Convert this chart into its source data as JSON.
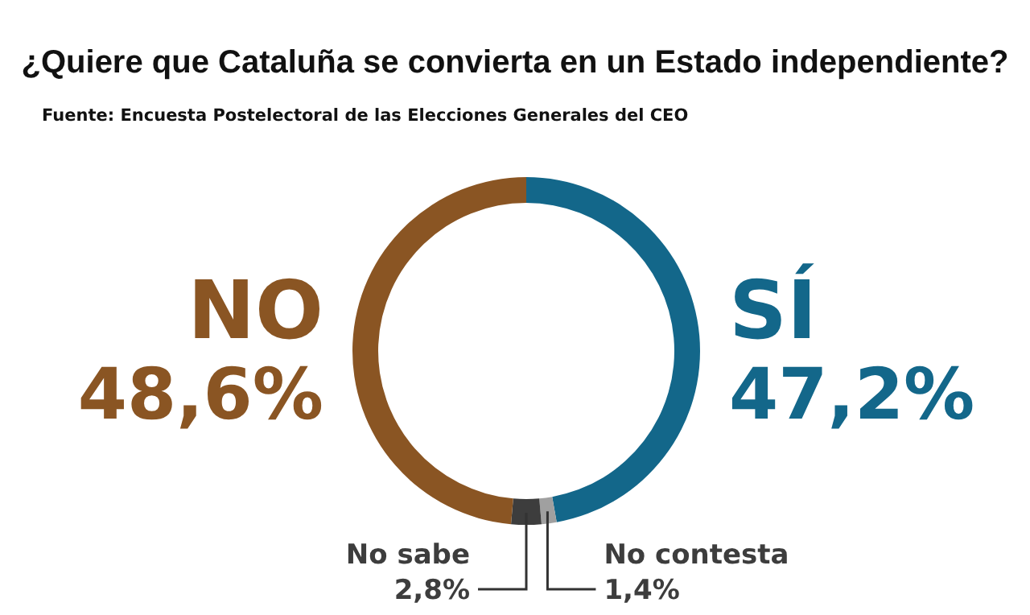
{
  "chart_data": {
    "type": "donut",
    "title": "¿Quiere que Cataluña se convierta en un Estado independiente?",
    "subtitle": "Fuente: Encuesta Postelectoral de las Elecciones Generales del CEO",
    "categories": [
      "SÍ",
      "No contesta",
      "No sabe",
      "NO"
    ],
    "values": [
      47.2,
      1.4,
      2.8,
      48.6
    ],
    "colors": [
      "#13678a",
      "#a0a0a0",
      "#3d3d3d",
      "#8a5523"
    ],
    "value_labels": [
      "47,2%",
      "1,4%",
      "2,8%",
      "48,6%"
    ],
    "legend": false
  }
}
